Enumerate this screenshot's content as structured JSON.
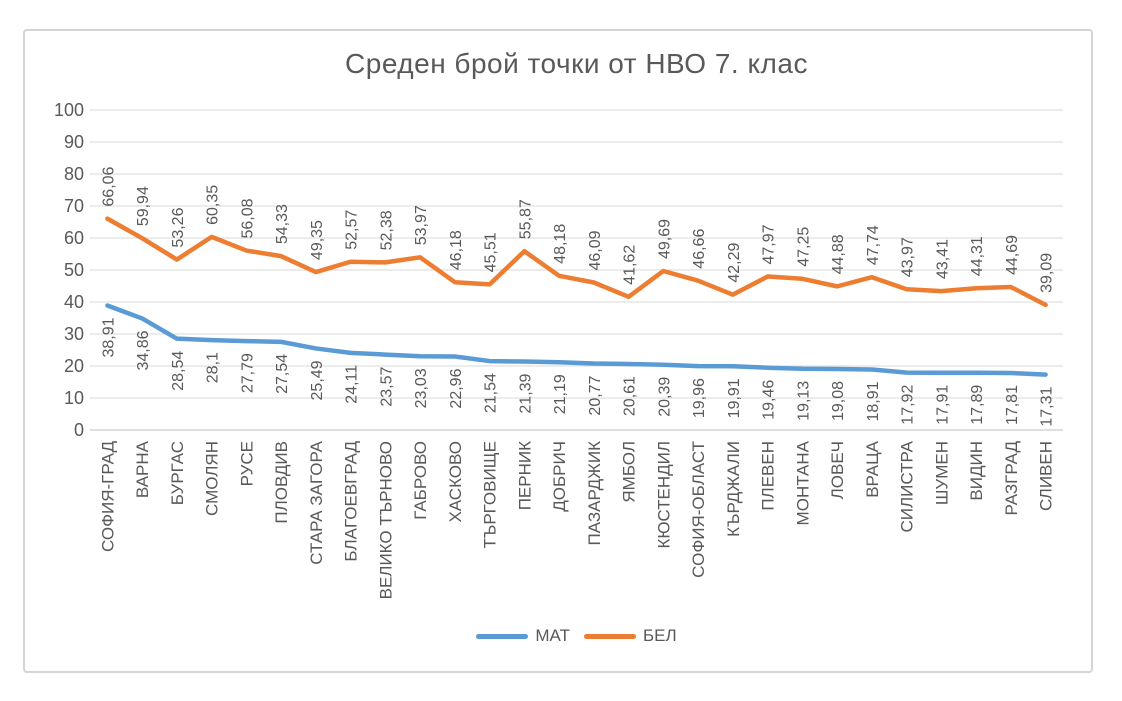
{
  "title": "Среден брой точки от НВО 7. клас",
  "legend": [
    {
      "name": "МАТ",
      "color": "#5B9BD5"
    },
    {
      "name": "БЕЛ",
      "color": "#ED7D31"
    }
  ],
  "colors": {
    "text": "#595959",
    "gridline": "#d9d9d9",
    "axis": "#bfbfbf",
    "series_mat": "#5B9BD5",
    "series_bel": "#ED7D31"
  },
  "chart_data": {
    "type": "line",
    "title": "Среден брой точки от НВО 7. клас",
    "xlabel": "",
    "ylabel": "",
    "ylim": [
      0,
      100
    ],
    "y_ticks": [
      0,
      10,
      20,
      30,
      40,
      50,
      60,
      70,
      80,
      90,
      100
    ],
    "grid": true,
    "legend_position": "bottom",
    "decimal_separator": ",",
    "categories": [
      "СОФИЯ-ГРАД",
      "ВАРНА",
      "БУРГАС",
      "СМОЛЯН",
      "РУСЕ",
      "ПЛОВДИВ",
      "СТАРА ЗАГОРА",
      "БЛАГОЕВГРАД",
      "ВЕЛИКО ТЪРНОВО",
      "ГАБРОВО",
      "ХАСКОВО",
      "ТЪРГОВИЩЕ",
      "ПЕРНИК",
      "ДОБРИЧ",
      "ПАЗАРДЖИК",
      "ЯМБОЛ",
      "КЮСТЕНДИЛ",
      "СОФИЯ-ОБЛАСТ",
      "КЪРДЖАЛИ",
      "ПЛЕВЕН",
      "МОНТАНА",
      "ЛОВЕЧ",
      "ВРАЦА",
      "СИЛИСТРА",
      "ШУМЕН",
      "ВИДИН",
      "РАЗГРАД",
      "СЛИВЕН"
    ],
    "series": [
      {
        "id": "mat",
        "name": "МАТ",
        "color": "#5B9BD5",
        "label_side": "below",
        "values": [
          38.91,
          34.86,
          28.54,
          28.1,
          27.79,
          27.54,
          25.49,
          24.11,
          23.57,
          23.03,
          22.96,
          21.54,
          21.39,
          21.19,
          20.77,
          20.61,
          20.39,
          19.96,
          19.91,
          19.46,
          19.13,
          19.08,
          18.91,
          17.92,
          17.91,
          17.89,
          17.81,
          17.31
        ],
        "labels": [
          "38,91",
          "34,86",
          "28,54",
          "28,1",
          "27,79",
          "27,54",
          "25,49",
          "24,11",
          "23,57",
          "23,03",
          "22,96",
          "21,54",
          "21,39",
          "21,19",
          "20,77",
          "20,61",
          "20,39",
          "19,96",
          "19,91",
          "19,46",
          "19,13",
          "19,08",
          "18,91",
          "17,92",
          "17,91",
          "17,89",
          "17,81",
          "17,31"
        ]
      },
      {
        "id": "bel",
        "name": "БЕЛ",
        "color": "#ED7D31",
        "label_side": "above",
        "values": [
          66.06,
          59.94,
          53.26,
          60.35,
          56.08,
          54.33,
          49.35,
          52.57,
          52.38,
          53.97,
          46.18,
          45.51,
          55.87,
          48.18,
          46.09,
          41.62,
          49.69,
          46.66,
          42.29,
          47.97,
          47.25,
          44.88,
          47.74,
          43.97,
          43.41,
          44.31,
          44.69,
          39.09
        ],
        "labels": [
          "66,06",
          "59,94",
          "53,26",
          "60,35",
          "56,08",
          "54,33",
          "49,35",
          "52,57",
          "52,38",
          "53,97",
          "46,18",
          "45,51",
          "55,87",
          "48,18",
          "46,09",
          "41,62",
          "49,69",
          "46,66",
          "42,29",
          "47,97",
          "47,25",
          "44,88",
          "47,74",
          "43,97",
          "43,41",
          "44,31",
          "44,69",
          "39,09"
        ]
      }
    ]
  }
}
